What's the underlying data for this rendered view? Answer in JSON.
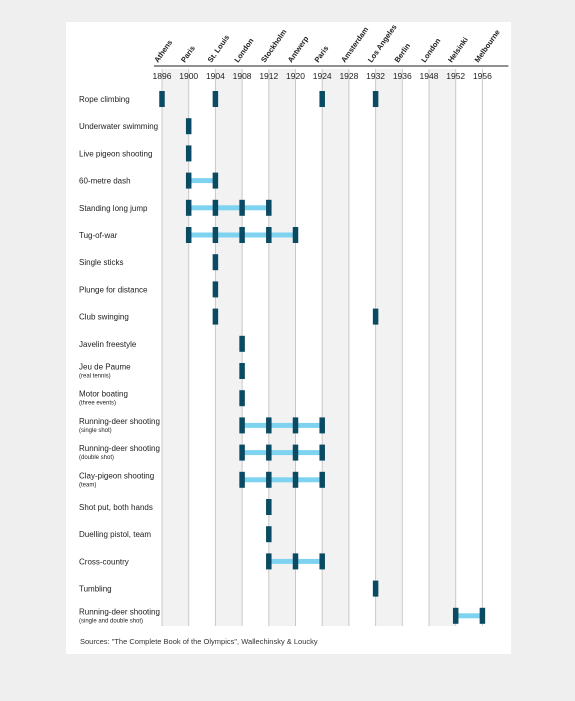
{
  "chart_data": {
    "type": "timeline",
    "years": [
      1896,
      1900,
      1904,
      1908,
      1912,
      1920,
      1924,
      1928,
      1932,
      1936,
      1948,
      1952,
      1956
    ],
    "cities": [
      "Athens",
      "Paris",
      "St. Louis",
      "London",
      "Stockholm",
      "Antwerp",
      "Paris",
      "Amsterdam",
      "Los Angeles",
      "Berlin",
      "London",
      "Helsinki",
      "Melbourne"
    ],
    "events": [
      {
        "name": "Rope climbing",
        "sub": "",
        "years": [
          1896,
          1904,
          1924,
          1932
        ],
        "connected": false
      },
      {
        "name": "Underwater swimming",
        "sub": "",
        "years": [
          1900
        ],
        "connected": false
      },
      {
        "name": "Live pigeon shooting",
        "sub": "",
        "years": [
          1900
        ],
        "connected": false
      },
      {
        "name": "60-metre dash",
        "sub": "",
        "years": [
          1900,
          1904
        ],
        "connected": true
      },
      {
        "name": "Standing long jump",
        "sub": "",
        "years": [
          1900,
          1904,
          1908,
          1912
        ],
        "connected": true
      },
      {
        "name": "Tug-of-war",
        "sub": "",
        "years": [
          1900,
          1904,
          1908,
          1912,
          1920
        ],
        "connected": true
      },
      {
        "name": "Single sticks",
        "sub": "",
        "years": [
          1904
        ],
        "connected": false
      },
      {
        "name": "Plunge for distance",
        "sub": "",
        "years": [
          1904
        ],
        "connected": false
      },
      {
        "name": "Club swinging",
        "sub": "",
        "years": [
          1904,
          1932
        ],
        "connected": false
      },
      {
        "name": "Javelin freestyle",
        "sub": "",
        "years": [
          1908
        ],
        "connected": false
      },
      {
        "name": "Jeu de Paume",
        "sub": "(real tennis)",
        "years": [
          1908
        ],
        "connected": false
      },
      {
        "name": "Motor boating",
        "sub": "(three events)",
        "years": [
          1908
        ],
        "connected": false
      },
      {
        "name": "Running-deer shooting",
        "sub": "(single shot)",
        "years": [
          1908,
          1912,
          1920,
          1924
        ],
        "connected": true
      },
      {
        "name": "Running-deer shooting",
        "sub": "(double shot)",
        "years": [
          1908,
          1912,
          1920,
          1924
        ],
        "connected": true
      },
      {
        "name": "Clay-pigeon shooting",
        "sub": "(team)",
        "years": [
          1908,
          1912,
          1920,
          1924
        ],
        "connected": true
      },
      {
        "name": "Shot put, both hands",
        "sub": "",
        "years": [
          1912
        ],
        "connected": false
      },
      {
        "name": "Duelling pistol, team",
        "sub": "",
        "years": [
          1912
        ],
        "connected": false
      },
      {
        "name": "Cross-country",
        "sub": "",
        "years": [
          1912,
          1920,
          1924
        ],
        "connected": true
      },
      {
        "name": "Tumbling",
        "sub": "",
        "years": [
          1932
        ],
        "connected": false
      },
      {
        "name": "Running-deer shooting",
        "sub": "(single and double shot)",
        "years": [
          1952,
          1956
        ],
        "connected": true
      }
    ],
    "colors": {
      "marker": "#0b4a63",
      "connector": "#7dd3f0",
      "band": "#f2f2f2",
      "gridline": "#c8c8c8",
      "axis": "#222222",
      "text": "#222222"
    }
  },
  "source": "Sources: \"The Complete Book of the Olympics\", Wallechinsky & Loucky"
}
